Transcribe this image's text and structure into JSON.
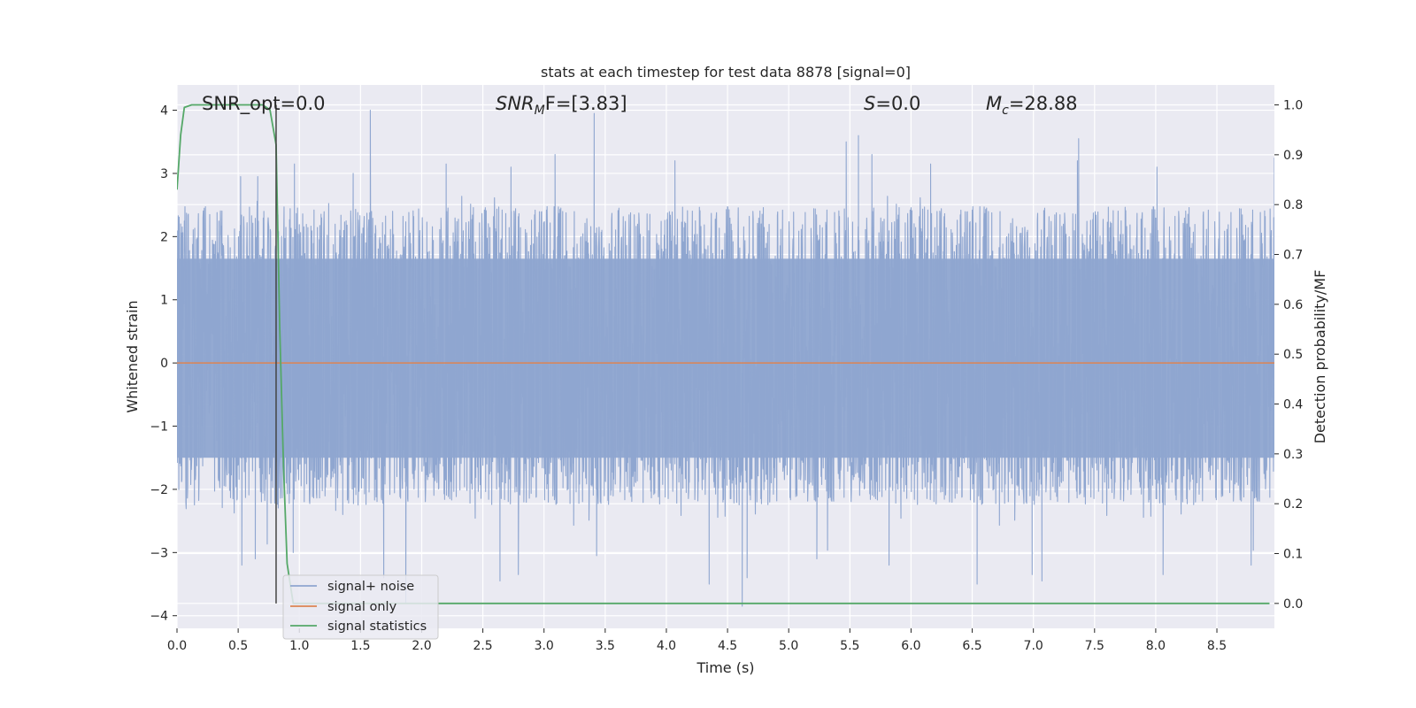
{
  "chart_data": {
    "type": "line",
    "title": "stats at each timestep for test data 8878 [signal=0]",
    "xlabel": "Time (s)",
    "ylabel": "Whitened strain",
    "y2label": "Detection probability/MF",
    "xlim": [
      0.0,
      8.97
    ],
    "ylim": [
      -4.2,
      4.4
    ],
    "y2lim": [
      -0.05,
      1.04
    ],
    "x_ticks": [
      0.0,
      0.5,
      1.0,
      1.5,
      2.0,
      2.5,
      3.0,
      3.5,
      4.0,
      4.5,
      5.0,
      5.5,
      6.0,
      6.5,
      7.0,
      7.5,
      8.0,
      8.5
    ],
    "x_tick_labels": [
      "0.0",
      "0.5",
      "1.0",
      "1.5",
      "2.0",
      "2.5",
      "3.0",
      "3.5",
      "4.0",
      "4.5",
      "5.0",
      "5.5",
      "6.0",
      "6.5",
      "7.0",
      "7.5",
      "8.0",
      "8.5"
    ],
    "y_ticks": [
      4,
      3,
      2,
      1,
      0,
      -1,
      -2,
      -3,
      -4
    ],
    "y_tick_labels": [
      "4",
      "3",
      "2",
      "1",
      "0",
      "−1",
      "−2",
      "−3",
      "−4"
    ],
    "y2_ticks": [
      1.0,
      0.9,
      0.8,
      0.7,
      0.6,
      0.5,
      0.4,
      0.3,
      0.2,
      0.1,
      0.0
    ],
    "y2_tick_labels": [
      "1.0",
      "0.9",
      "0.8",
      "0.7",
      "0.6",
      "0.5",
      "0.4",
      "0.3",
      "0.2",
      "0.1",
      "0.0"
    ],
    "grid": true,
    "legend_position": "lower-left",
    "annotations": {
      "snr_opt": "SNR_opt=0.0",
      "snr_mf_label": "SNR",
      "snr_mf_sub": "M",
      "snr_mf_rest": "F=[3.83]",
      "s_label": "S",
      "s_value": "=0.0",
      "mc_label": "M",
      "mc_sub": "c",
      "mc_value": "=28.88"
    },
    "vertical_marker_x": 0.81,
    "series": [
      {
        "name": "signal+ noise",
        "color": "#8fa6d0",
        "axis": "left",
        "sample_rate": 2048,
        "noise_envelope": {
          "core_bound_upper": 1.65,
          "core_bound_lower": -1.5,
          "peak_points": [
            [
              0.03,
              2.2
            ],
            [
              0.52,
              2.95
            ],
            [
              0.66,
              2.95
            ],
            [
              0.96,
              3.15
            ],
            [
              1.44,
              3.0
            ],
            [
              1.58,
              4.0
            ],
            [
              2.2,
              3.15
            ],
            [
              2.73,
              3.1
            ],
            [
              3.09,
              3.3
            ],
            [
              3.41,
              3.95
            ],
            [
              4.07,
              3.2
            ],
            [
              5.47,
              3.5
            ],
            [
              5.57,
              3.6
            ],
            [
              5.68,
              3.3
            ],
            [
              6.16,
              3.15
            ],
            [
              7.37,
              3.55
            ],
            [
              7.36,
              3.2
            ],
            [
              8.01,
              3.1
            ],
            [
              8.97,
              3.25
            ]
          ],
          "trough_points": [
            [
              0.53,
              -3.2
            ],
            [
              0.64,
              -3.1
            ],
            [
              0.95,
              -3.0
            ],
            [
              1.69,
              -3.4
            ],
            [
              1.87,
              -3.8
            ],
            [
              2.64,
              -3.45
            ],
            [
              2.79,
              -3.35
            ],
            [
              3.43,
              -3.05
            ],
            [
              4.35,
              -3.5
            ],
            [
              4.62,
              -3.85
            ],
            [
              4.66,
              -3.4
            ],
            [
              5.23,
              -3.1
            ],
            [
              5.82,
              -3.2
            ],
            [
              6.54,
              -3.5
            ],
            [
              6.99,
              -3.35
            ],
            [
              7.07,
              -3.45
            ],
            [
              8.06,
              -3.35
            ],
            [
              8.78,
              -3.2
            ]
          ]
        }
      },
      {
        "name": "signal only",
        "color": "#dd8452",
        "axis": "left",
        "x": [
          0.0,
          8.97
        ],
        "y": [
          0.0,
          0.0
        ]
      },
      {
        "name": "signal statistics",
        "color": "#55a868",
        "axis": "right",
        "x": [
          0.0,
          0.03,
          0.06,
          0.12,
          0.2,
          0.3,
          0.4,
          0.5,
          0.6,
          0.7,
          0.76,
          0.81,
          0.84,
          0.87,
          0.9,
          0.95,
          1.0,
          2.0,
          3.0,
          4.0,
          5.0,
          6.0,
          7.0,
          8.0,
          8.93
        ],
        "y": [
          0.83,
          0.94,
          0.995,
          1.0,
          1.0,
          1.0,
          1.0,
          1.0,
          1.0,
          1.0,
          0.99,
          0.92,
          0.55,
          0.28,
          0.08,
          0.0,
          0.0,
          0.0,
          0.0,
          0.0,
          0.0,
          0.0,
          0.0,
          0.0,
          0.0
        ]
      }
    ]
  }
}
